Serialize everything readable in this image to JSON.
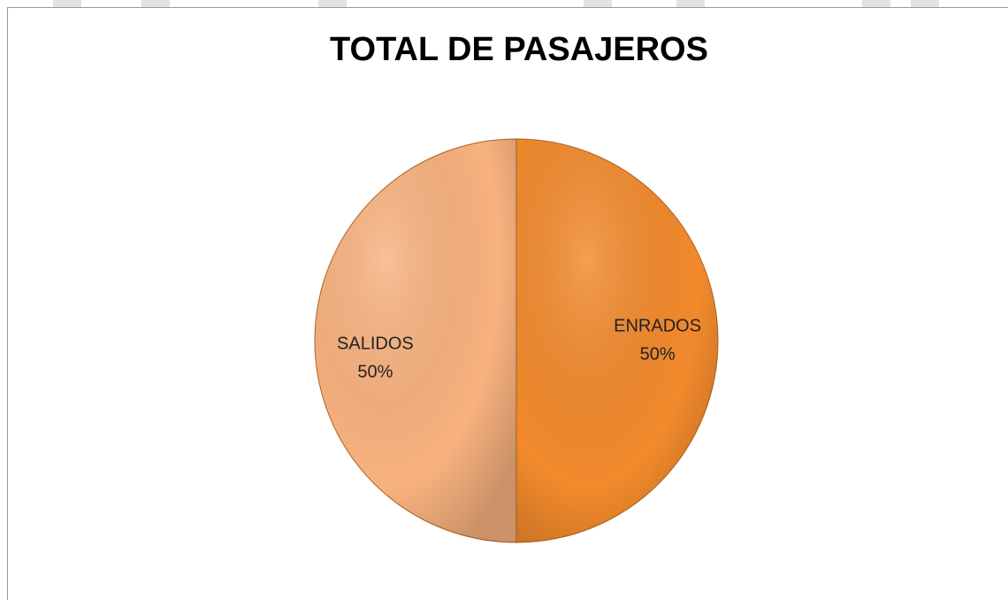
{
  "chart_data": {
    "type": "pie",
    "title": "TOTAL DE PASAJEROS",
    "categories": [
      "ENRADOS",
      "SALIDOS"
    ],
    "values": [
      50,
      50
    ],
    "value_labels": [
      "50%",
      "50%"
    ],
    "colors": [
      "#f28a2c",
      "#f8b27f"
    ]
  }
}
